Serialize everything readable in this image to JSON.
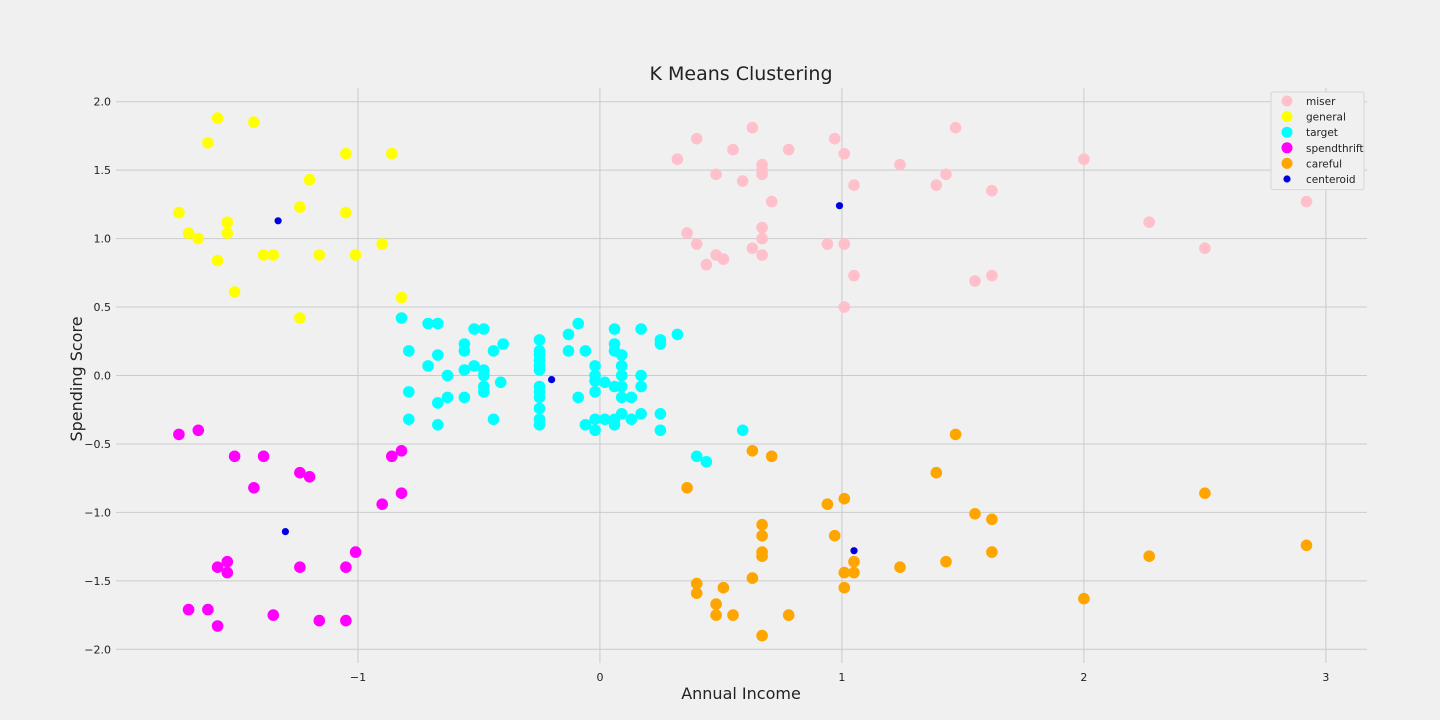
{
  "chart_data": {
    "type": "scatter",
    "title": "K Means Clustering",
    "xlabel": "Annual Income",
    "ylabel": "Spending Score",
    "xlim": [
      -2.0,
      3.17
    ],
    "ylim": [
      -2.1,
      2.1
    ],
    "xticks": [
      -1,
      0,
      1,
      2,
      3
    ],
    "xtick_labels": [
      "−1",
      "0",
      "1",
      "2",
      "3"
    ],
    "yticks": [
      2.0,
      1.5,
      1.0,
      0.5,
      0.0,
      -0.5,
      -1.0,
      -1.5,
      -2.0
    ],
    "ytick_labels": [
      "2.0",
      "1.5",
      "1.0",
      "0.5",
      "0.0",
      "−0.5",
      "−1.0",
      "−1.5",
      "−2.0"
    ],
    "grid": true,
    "legend_position": "top-right",
    "background": "#f0f0f0",
    "series": [
      {
        "name": "miser",
        "color": "#ffc0cb",
        "marker": "large",
        "points": [
          [
            0.32,
            1.58
          ],
          [
            0.4,
            1.73
          ],
          [
            0.55,
            1.65
          ],
          [
            0.63,
            1.81
          ],
          [
            0.78,
            1.65
          ],
          [
            0.97,
            1.73
          ],
          [
            1.01,
            1.62
          ],
          [
            1.47,
            1.81
          ],
          [
            2.0,
            1.58
          ],
          [
            0.48,
            1.47
          ],
          [
            0.59,
            1.42
          ],
          [
            0.67,
            1.54
          ],
          [
            0.67,
            1.5
          ],
          [
            0.67,
            1.47
          ],
          [
            1.05,
            1.39
          ],
          [
            1.24,
            1.54
          ],
          [
            1.39,
            1.39
          ],
          [
            1.43,
            1.47
          ],
          [
            1.62,
            1.35
          ],
          [
            0.71,
            1.27
          ],
          [
            2.92,
            1.27
          ],
          [
            2.27,
            1.12
          ],
          [
            0.36,
            1.04
          ],
          [
            0.67,
            1.08
          ],
          [
            0.4,
            0.96
          ],
          [
            0.63,
            0.93
          ],
          [
            0.67,
            1.0
          ],
          [
            0.94,
            0.96
          ],
          [
            1.01,
            0.96
          ],
          [
            0.48,
            0.88
          ],
          [
            0.51,
            0.85
          ],
          [
            0.44,
            0.81
          ],
          [
            0.67,
            0.88
          ],
          [
            2.5,
            0.93
          ],
          [
            1.05,
            0.73
          ],
          [
            1.55,
            0.69
          ],
          [
            1.62,
            0.73
          ],
          [
            1.01,
            0.5
          ]
        ]
      },
      {
        "name": "general",
        "color": "#ffff00",
        "marker": "large",
        "points": [
          [
            -1.58,
            1.88
          ],
          [
            -1.43,
            1.85
          ],
          [
            -1.62,
            1.7
          ],
          [
            -1.05,
            1.62
          ],
          [
            -0.86,
            1.62
          ],
          [
            -1.2,
            1.43
          ],
          [
            -1.24,
            1.23
          ],
          [
            -1.74,
            1.19
          ],
          [
            -1.05,
            1.19
          ],
          [
            -1.54,
            1.12
          ],
          [
            -1.7,
            1.04
          ],
          [
            -1.54,
            1.04
          ],
          [
            -1.66,
            1.0
          ],
          [
            -0.9,
            0.96
          ],
          [
            -1.39,
            0.88
          ],
          [
            -1.35,
            0.88
          ],
          [
            -1.16,
            0.88
          ],
          [
            -1.01,
            0.88
          ],
          [
            -1.58,
            0.84
          ],
          [
            -1.51,
            0.61
          ],
          [
            -0.82,
            0.57
          ],
          [
            -1.24,
            0.42
          ]
        ]
      },
      {
        "name": "target",
        "color": "#00ffff",
        "marker": "large",
        "points": [
          [
            -0.82,
            0.42
          ],
          [
            -0.71,
            0.38
          ],
          [
            -0.67,
            0.38
          ],
          [
            -0.52,
            0.34
          ],
          [
            -0.48,
            0.34
          ],
          [
            -0.79,
            0.18
          ],
          [
            -0.56,
            0.23
          ],
          [
            -0.56,
            0.18
          ],
          [
            -0.44,
            0.18
          ],
          [
            -0.4,
            0.23
          ],
          [
            -0.67,
            0.15
          ],
          [
            -0.71,
            0.07
          ],
          [
            -0.52,
            0.07
          ],
          [
            -0.63,
            0.0
          ],
          [
            -0.56,
            0.04
          ],
          [
            -0.48,
            0.04
          ],
          [
            -0.48,
            0.0
          ],
          [
            -0.41,
            -0.05
          ],
          [
            -0.79,
            -0.12
          ],
          [
            -0.48,
            -0.08
          ],
          [
            -0.48,
            -0.12
          ],
          [
            -0.63,
            -0.16
          ],
          [
            -0.56,
            -0.16
          ],
          [
            -0.67,
            -0.2
          ],
          [
            -0.79,
            -0.32
          ],
          [
            -0.44,
            -0.32
          ],
          [
            -0.67,
            -0.36
          ],
          [
            -0.25,
            0.26
          ],
          [
            -0.25,
            0.18
          ],
          [
            -0.25,
            0.15
          ],
          [
            -0.25,
            0.11
          ],
          [
            -0.25,
            0.07
          ],
          [
            -0.25,
            0.04
          ],
          [
            -0.25,
            -0.08
          ],
          [
            -0.25,
            -0.12
          ],
          [
            -0.25,
            -0.16
          ],
          [
            -0.25,
            -0.24
          ],
          [
            -0.25,
            -0.32
          ],
          [
            -0.25,
            -0.36
          ],
          [
            -0.13,
            0.3
          ],
          [
            -0.09,
            0.38
          ],
          [
            -0.13,
            0.18
          ],
          [
            -0.06,
            0.18
          ],
          [
            -0.09,
            -0.16
          ],
          [
            -0.06,
            -0.36
          ],
          [
            -0.02,
            0.07
          ],
          [
            -0.02,
            0.0
          ],
          [
            -0.02,
            -0.04
          ],
          [
            0.02,
            -0.05
          ],
          [
            0.06,
            0.34
          ],
          [
            0.06,
            0.23
          ],
          [
            0.06,
            0.18
          ],
          [
            0.09,
            0.15
          ],
          [
            0.09,
            0.07
          ],
          [
            0.09,
            0.0
          ],
          [
            0.06,
            -0.08
          ],
          [
            0.09,
            -0.08
          ],
          [
            0.09,
            -0.16
          ],
          [
            0.13,
            -0.16
          ],
          [
            0.17,
            0.34
          ],
          [
            0.17,
            0.0
          ],
          [
            0.17,
            -0.08
          ],
          [
            -0.02,
            -0.12
          ],
          [
            0.02,
            -0.32
          ],
          [
            -0.02,
            -0.32
          ],
          [
            0.06,
            -0.32
          ],
          [
            0.06,
            -0.36
          ],
          [
            0.09,
            -0.28
          ],
          [
            0.13,
            -0.32
          ],
          [
            0.17,
            -0.28
          ],
          [
            0.25,
            0.26
          ],
          [
            0.25,
            0.23
          ],
          [
            0.32,
            0.3
          ],
          [
            0.25,
            -0.28
          ],
          [
            0.25,
            -0.4
          ],
          [
            -0.02,
            -0.4
          ],
          [
            0.59,
            -0.4
          ],
          [
            0.4,
            -0.59
          ],
          [
            0.44,
            -0.63
          ]
        ]
      },
      {
        "name": "spendthrift",
        "color": "#ff00ff",
        "marker": "large",
        "points": [
          [
            -1.74,
            -0.43
          ],
          [
            -1.66,
            -0.4
          ],
          [
            -1.51,
            -0.59
          ],
          [
            -1.39,
            -0.59
          ],
          [
            -1.24,
            -0.71
          ],
          [
            -1.2,
            -0.74
          ],
          [
            -1.43,
            -0.82
          ],
          [
            -0.86,
            -0.59
          ],
          [
            -0.82,
            -0.55
          ],
          [
            -0.82,
            -0.86
          ],
          [
            -0.9,
            -0.94
          ],
          [
            -1.01,
            -1.29
          ],
          [
            -1.54,
            -1.36
          ],
          [
            -1.58,
            -1.4
          ],
          [
            -1.54,
            -1.44
          ],
          [
            -1.24,
            -1.4
          ],
          [
            -1.05,
            -1.4
          ],
          [
            -1.7,
            -1.71
          ],
          [
            -1.62,
            -1.71
          ],
          [
            -1.35,
            -1.75
          ],
          [
            -1.16,
            -1.79
          ],
          [
            -1.05,
            -1.79
          ],
          [
            -1.58,
            -1.83
          ]
        ]
      },
      {
        "name": "careful",
        "color": "#ffa500",
        "marker": "large",
        "points": [
          [
            1.47,
            -0.43
          ],
          [
            0.63,
            -0.55
          ],
          [
            0.71,
            -0.59
          ],
          [
            1.39,
            -0.71
          ],
          [
            0.36,
            -0.82
          ],
          [
            2.5,
            -0.86
          ],
          [
            1.01,
            -0.9
          ],
          [
            0.94,
            -0.94
          ],
          [
            1.55,
            -1.01
          ],
          [
            1.62,
            -1.05
          ],
          [
            0.67,
            -1.09
          ],
          [
            0.67,
            -1.17
          ],
          [
            0.97,
            -1.17
          ],
          [
            2.92,
            -1.24
          ],
          [
            0.67,
            -1.29
          ],
          [
            1.62,
            -1.29
          ],
          [
            0.67,
            -1.32
          ],
          [
            2.27,
            -1.32
          ],
          [
            1.05,
            -1.36
          ],
          [
            1.43,
            -1.36
          ],
          [
            1.24,
            -1.4
          ],
          [
            1.01,
            -1.44
          ],
          [
            1.05,
            -1.44
          ],
          [
            0.63,
            -1.48
          ],
          [
            0.4,
            -1.52
          ],
          [
            1.01,
            -1.55
          ],
          [
            0.51,
            -1.55
          ],
          [
            0.4,
            -1.59
          ],
          [
            2.0,
            -1.63
          ],
          [
            0.48,
            -1.67
          ],
          [
            0.48,
            -1.75
          ],
          [
            0.55,
            -1.75
          ],
          [
            0.78,
            -1.75
          ],
          [
            0.67,
            -1.9
          ]
        ]
      },
      {
        "name": "centeroid",
        "color": "#0000dd",
        "marker": "small",
        "points": [
          [
            -1.33,
            1.13
          ],
          [
            0.99,
            1.24
          ],
          [
            -0.2,
            -0.03
          ],
          [
            -1.3,
            -1.14
          ],
          [
            1.05,
            -1.28
          ]
        ]
      }
    ]
  }
}
